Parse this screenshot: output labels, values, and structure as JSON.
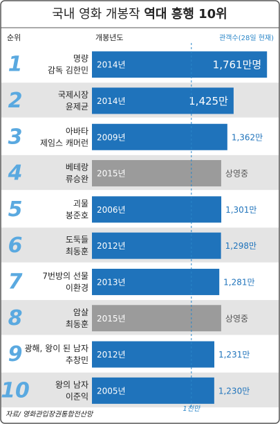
{
  "chart_data": {
    "type": "bar",
    "orientation": "horizontal",
    "title": "국내 영화 개봉작",
    "title_emphasis": "역대 흥행 10위",
    "headers": {
      "rank": "순위",
      "year": "개봉년도",
      "value": "관객수(28일 현재)"
    },
    "ranks": [
      "1",
      "2",
      "3",
      "4",
      "5",
      "6",
      "7",
      "8",
      "9",
      "10"
    ],
    "titles": [
      "명량",
      "국제시장",
      "아바타",
      "베테랑",
      "괴물",
      "도둑들",
      "7번방의 선물",
      "암살",
      "광해, 왕이 된 남자",
      "왕의 남자"
    ],
    "directors": [
      "감독 김한민",
      "윤제균",
      "제임스 캐머런",
      "류승완",
      "봉준호",
      "최동훈",
      "이환경",
      "최동훈",
      "추창민",
      "이준익"
    ],
    "years": [
      "2014년",
      "2014년",
      "2009년",
      "2015년",
      "2006년",
      "2012년",
      "2013년",
      "2015년",
      "2012년",
      "2005년"
    ],
    "values": [
      1761,
      1425,
      1362,
      1300,
      1301,
      1298,
      1281,
      1300,
      1231,
      1230
    ],
    "value_labels": [
      "1,761만명",
      "1,425만",
      "1,362만",
      "상영중",
      "1,301만",
      "1,298만",
      "1,281만",
      "상영중",
      "1,231만",
      "1,230만"
    ],
    "colors": [
      "#1f73bb",
      "#1f73bb",
      "#1f73bb",
      "#9b9b9b",
      "#1f73bb",
      "#1f73bb",
      "#1f73bb",
      "#9b9b9b",
      "#1f73bb",
      "#1f73bb"
    ],
    "xlim": [
      0,
      1850
    ],
    "reference": {
      "value": 1000,
      "label": "1천만"
    },
    "source": "자료/ 영화관입장권통합전산망"
  }
}
